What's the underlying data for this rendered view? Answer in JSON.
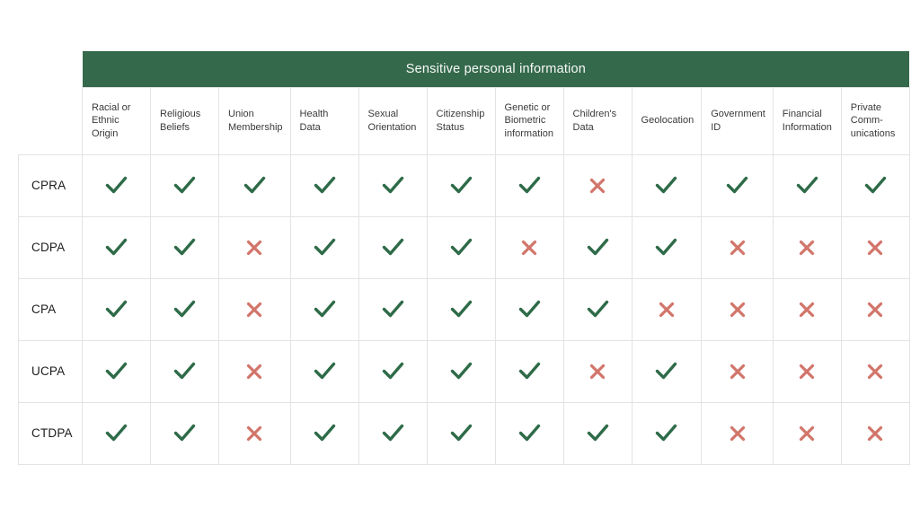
{
  "colors": {
    "banner_bg": "#35694c",
    "banner_text": "#f7faf7",
    "check": "#2e6b48",
    "cross": "#d2756a",
    "grid_border": "#e3e3e3",
    "header_text": "#3a3a3a",
    "row_label_text": "#1c1c1c"
  },
  "icons": {
    "check": "check-icon",
    "cross": "cross-icon"
  },
  "chart_data": {
    "type": "table",
    "title": "Sensitive personal information",
    "columns": [
      "Racial or Ethnic Origin",
      "Religious Beliefs",
      "Union Membership",
      "Health Data",
      "Sexual Orientation",
      "Citizenship Status",
      "Genetic or Biometric information",
      "Children's Data",
      "Geolocation",
      "Government ID",
      "Financial Information",
      "Private Comm-unications"
    ],
    "rows": [
      {
        "label": "CPRA",
        "values": [
          "check",
          "check",
          "check",
          "check",
          "check",
          "check",
          "check",
          "cross",
          "check",
          "check",
          "check",
          "check"
        ]
      },
      {
        "label": "CDPA",
        "values": [
          "check",
          "check",
          "cross",
          "check",
          "check",
          "check",
          "cross",
          "check",
          "check",
          "cross",
          "cross",
          "cross"
        ]
      },
      {
        "label": "CPA",
        "values": [
          "check",
          "check",
          "cross",
          "check",
          "check",
          "check",
          "check",
          "check",
          "cross",
          "cross",
          "cross",
          "cross"
        ]
      },
      {
        "label": "UCPA",
        "values": [
          "check",
          "check",
          "cross",
          "check",
          "check",
          "check",
          "check",
          "cross",
          "check",
          "cross",
          "cross",
          "cross"
        ]
      },
      {
        "label": "CTDPA",
        "values": [
          "check",
          "check",
          "cross",
          "check",
          "check",
          "check",
          "check",
          "check",
          "check",
          "cross",
          "cross",
          "cross"
        ]
      }
    ]
  }
}
